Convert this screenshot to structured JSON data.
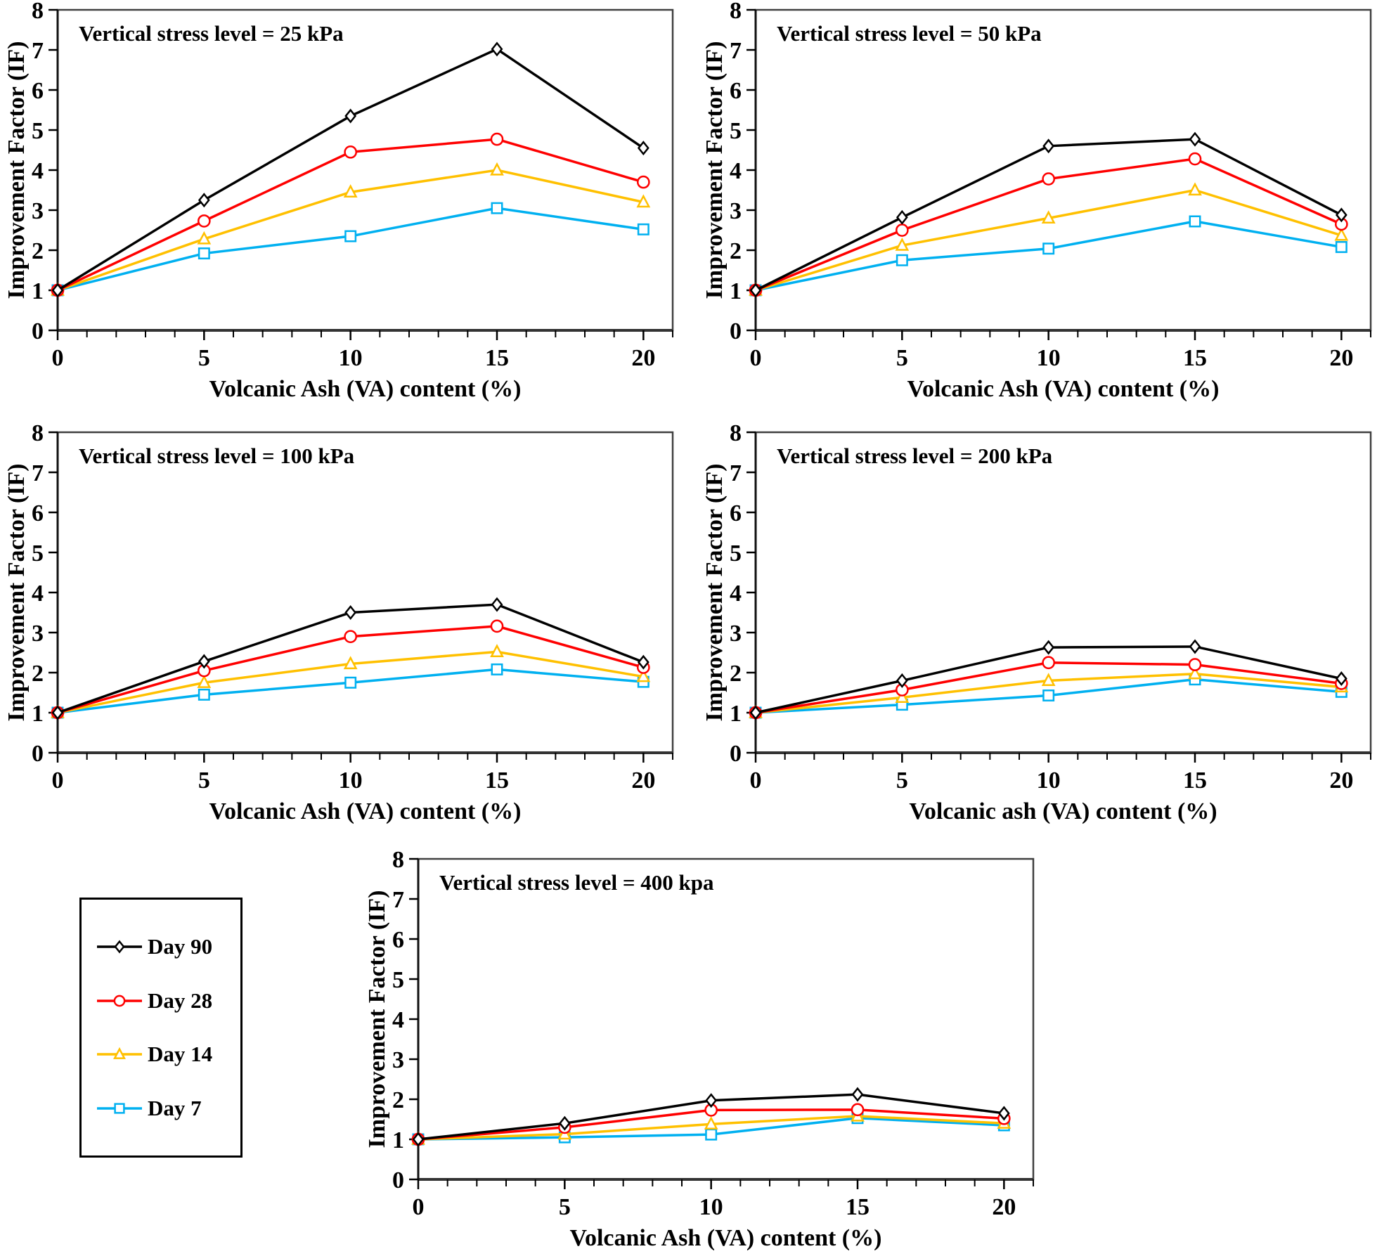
{
  "colors": {
    "day90": "#000000",
    "day28": "#FE0000",
    "day14": "#FFC000",
    "day7": "#00B0F0",
    "plot_border": "#404040"
  },
  "legend": {
    "items": [
      {
        "label": "Day 90",
        "marker": "diamond",
        "color": "#000000"
      },
      {
        "label": "Day 28",
        "marker": "circle",
        "color": "#FE0000"
      },
      {
        "label": "Day 14",
        "marker": "triangle",
        "color": "#FFC000"
      },
      {
        "label": "Day 7",
        "marker": "square",
        "color": "#00B0F0"
      }
    ]
  },
  "chart_data": [
    {
      "type": "line",
      "title": "Vertical stress level = 25 kPa",
      "xlabel": "Volcanic Ash (VA) content (%)",
      "ylabel": "Improvement Factor (IF)",
      "x": [
        0,
        5,
        10,
        15,
        20
      ],
      "xlim": [
        0,
        21
      ],
      "ylim": [
        0,
        8
      ],
      "xticks": [
        0,
        5,
        10,
        15,
        20
      ],
      "yticks": [
        0,
        1,
        2,
        3,
        4,
        5,
        6,
        7,
        8
      ],
      "x_minor_step": 1,
      "grid": false,
      "series": [
        {
          "name": "Day 90",
          "marker": "diamond",
          "color": "#000000",
          "values": [
            1,
            3.25,
            5.35,
            7.02,
            4.55
          ]
        },
        {
          "name": "Day 28",
          "marker": "circle",
          "color": "#FE0000",
          "values": [
            1,
            2.73,
            4.45,
            4.77,
            3.7
          ]
        },
        {
          "name": "Day 14",
          "marker": "triangle",
          "color": "#FFC000",
          "values": [
            1,
            2.28,
            3.45,
            4.0,
            3.2
          ]
        },
        {
          "name": "Day 7",
          "marker": "square",
          "color": "#00B0F0",
          "values": [
            1,
            1.92,
            2.35,
            3.05,
            2.52
          ]
        }
      ]
    },
    {
      "type": "line",
      "title": "Vertical stress level = 50 kPa",
      "xlabel": "Volcanic Ash (VA) content (%)",
      "ylabel": "Improvement Factor (IF)",
      "x": [
        0,
        5,
        10,
        15,
        20
      ],
      "xlim": [
        0,
        21
      ],
      "ylim": [
        0,
        8
      ],
      "xticks": [
        0,
        5,
        10,
        15,
        20
      ],
      "yticks": [
        0,
        1,
        2,
        3,
        4,
        5,
        6,
        7,
        8
      ],
      "x_minor_step": 1,
      "grid": false,
      "series": [
        {
          "name": "Day 90",
          "marker": "diamond",
          "color": "#000000",
          "values": [
            1,
            2.82,
            4.6,
            4.77,
            2.88
          ]
        },
        {
          "name": "Day 28",
          "marker": "circle",
          "color": "#FE0000",
          "values": [
            1,
            2.5,
            3.78,
            4.28,
            2.65
          ]
        },
        {
          "name": "Day 14",
          "marker": "triangle",
          "color": "#FFC000",
          "values": [
            1,
            2.12,
            2.8,
            3.5,
            2.37
          ]
        },
        {
          "name": "Day 7",
          "marker": "square",
          "color": "#00B0F0",
          "values": [
            1,
            1.75,
            2.04,
            2.72,
            2.08
          ]
        }
      ]
    },
    {
      "type": "line",
      "title": "Vertical stress level = 100 kPa",
      "xlabel": "Volcanic Ash (VA) content (%)",
      "ylabel": "Improvement Factor (IF)",
      "x": [
        0,
        5,
        10,
        15,
        20
      ],
      "xlim": [
        0,
        21
      ],
      "ylim": [
        0,
        8
      ],
      "xticks": [
        0,
        5,
        10,
        15,
        20
      ],
      "yticks": [
        0,
        1,
        2,
        3,
        4,
        5,
        6,
        7,
        8
      ],
      "x_minor_step": 1,
      "grid": false,
      "series": [
        {
          "name": "Day 90",
          "marker": "diamond",
          "color": "#000000",
          "values": [
            1,
            2.28,
            3.5,
            3.7,
            2.26
          ]
        },
        {
          "name": "Day 28",
          "marker": "circle",
          "color": "#FE0000",
          "values": [
            1,
            2.05,
            2.9,
            3.16,
            2.13
          ]
        },
        {
          "name": "Day 14",
          "marker": "triangle",
          "color": "#FFC000",
          "values": [
            1,
            1.75,
            2.22,
            2.52,
            1.9
          ]
        },
        {
          "name": "Day 7",
          "marker": "square",
          "color": "#00B0F0",
          "values": [
            1,
            1.45,
            1.75,
            2.08,
            1.77
          ]
        }
      ]
    },
    {
      "type": "line",
      "title": "Vertical stress level = 200 kPa",
      "xlabel": "Volcanic ash (VA) content (%)",
      "ylabel": "Improvement Factor (IF)",
      "x": [
        0,
        5,
        10,
        15,
        20
      ],
      "xlim": [
        0,
        21
      ],
      "ylim": [
        0,
        8
      ],
      "xticks": [
        0,
        5,
        10,
        15,
        20
      ],
      "yticks": [
        0,
        1,
        2,
        3,
        4,
        5,
        6,
        7,
        8
      ],
      "x_minor_step": 1,
      "grid": false,
      "series": [
        {
          "name": "Day 90",
          "marker": "diamond",
          "color": "#000000",
          "values": [
            1,
            1.8,
            2.63,
            2.65,
            1.85
          ]
        },
        {
          "name": "Day 28",
          "marker": "circle",
          "color": "#FE0000",
          "values": [
            1,
            1.57,
            2.25,
            2.2,
            1.73
          ]
        },
        {
          "name": "Day 14",
          "marker": "triangle",
          "color": "#FFC000",
          "values": [
            1,
            1.38,
            1.8,
            1.97,
            1.64
          ]
        },
        {
          "name": "Day 7",
          "marker": "square",
          "color": "#00B0F0",
          "values": [
            1,
            1.2,
            1.43,
            1.83,
            1.52
          ]
        }
      ]
    },
    {
      "type": "line",
      "title": "Vertical stress level = 400 kpa",
      "xlabel": "Volcanic Ash (VA) content (%)",
      "ylabel": "Improvement Factor (IF)",
      "x": [
        0,
        5,
        10,
        15,
        20
      ],
      "xlim": [
        0,
        21
      ],
      "ylim": [
        0,
        8
      ],
      "xticks": [
        0,
        5,
        10,
        15,
        20
      ],
      "yticks": [
        0,
        1,
        2,
        3,
        4,
        5,
        6,
        7,
        8
      ],
      "x_minor_step": 1,
      "grid": false,
      "series": [
        {
          "name": "Day 90",
          "marker": "diamond",
          "color": "#000000",
          "values": [
            1,
            1.4,
            1.97,
            2.12,
            1.65
          ]
        },
        {
          "name": "Day 28",
          "marker": "circle",
          "color": "#FE0000",
          "values": [
            1,
            1.3,
            1.73,
            1.74,
            1.52
          ]
        },
        {
          "name": "Day 14",
          "marker": "triangle",
          "color": "#FFC000",
          "values": [
            1,
            1.13,
            1.38,
            1.58,
            1.4
          ]
        },
        {
          "name": "Day 7",
          "marker": "square",
          "color": "#00B0F0",
          "values": [
            1,
            1.05,
            1.12,
            1.53,
            1.35
          ]
        }
      ]
    }
  ]
}
